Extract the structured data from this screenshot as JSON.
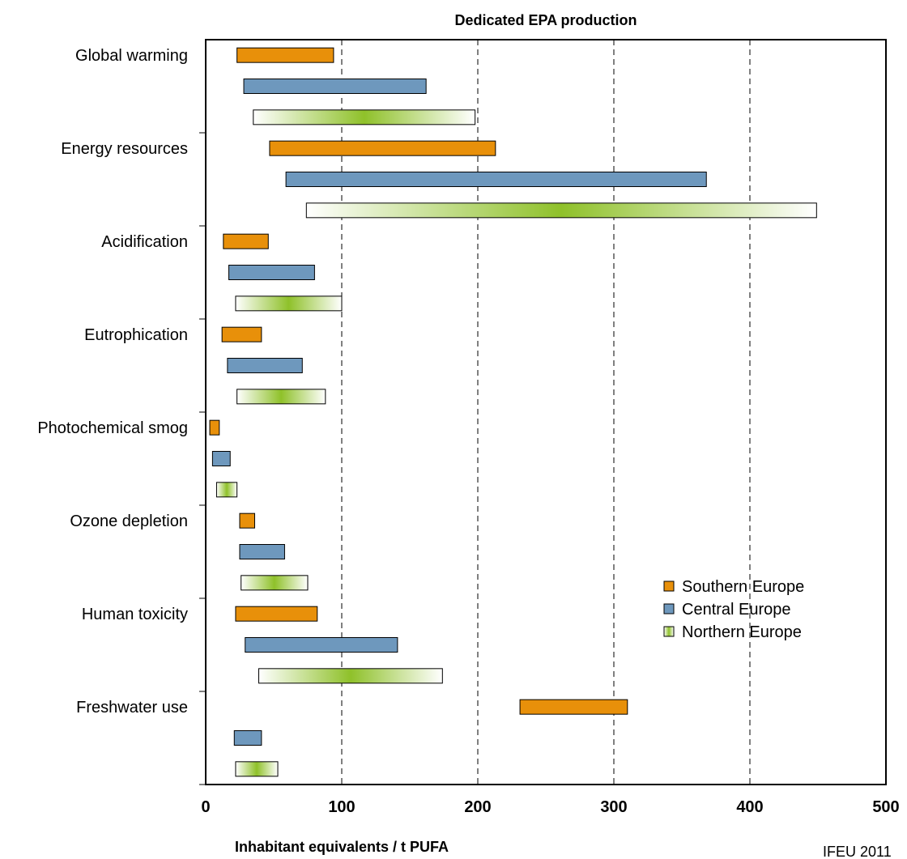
{
  "chart_data": {
    "type": "bar",
    "orientation": "horizontal-range",
    "title": "Dedicated EPA production",
    "xlabel": "Inhabitant equivalents  / t PUFA",
    "ylabel": "",
    "xlim": [
      0,
      500
    ],
    "xticks": [
      "0",
      "100",
      "200",
      "300",
      "400",
      "500"
    ],
    "grid": "vertical dashed lines at 100, 200, 300, 400",
    "legend_position": "right, lower-middle",
    "categories": [
      "Global warming",
      "Energy resources",
      "Acidification",
      "Eutrophication",
      "Photochemical smog",
      "Ozone depletion",
      "Human toxicity",
      "Freshwater use"
    ],
    "series": [
      {
        "name": "Southern Europe",
        "color": "#E8900A",
        "ranges": [
          [
            23,
            94
          ],
          [
            47,
            213
          ],
          [
            13,
            46
          ],
          [
            12,
            41
          ],
          [
            3,
            10
          ],
          [
            25,
            36
          ],
          [
            22,
            82
          ],
          [
            231,
            310
          ]
        ]
      },
      {
        "name": "Central Europe",
        "color": "#6E98BD",
        "ranges": [
          [
            28,
            162
          ],
          [
            59,
            368
          ],
          [
            17,
            80
          ],
          [
            16,
            71
          ],
          [
            5,
            18
          ],
          [
            25,
            58
          ],
          [
            29,
            141
          ],
          [
            21,
            41
          ]
        ]
      },
      {
        "name": "Northern Europe",
        "color": "#8FC12A",
        "style": "gradient",
        "ranges": [
          [
            35,
            198
          ],
          [
            74,
            449
          ],
          [
            22,
            100
          ],
          [
            23,
            88
          ],
          [
            8,
            23
          ],
          [
            26,
            75
          ],
          [
            39,
            174
          ],
          [
            22,
            53
          ]
        ]
      }
    ],
    "annotation": "IFEU 2011"
  }
}
